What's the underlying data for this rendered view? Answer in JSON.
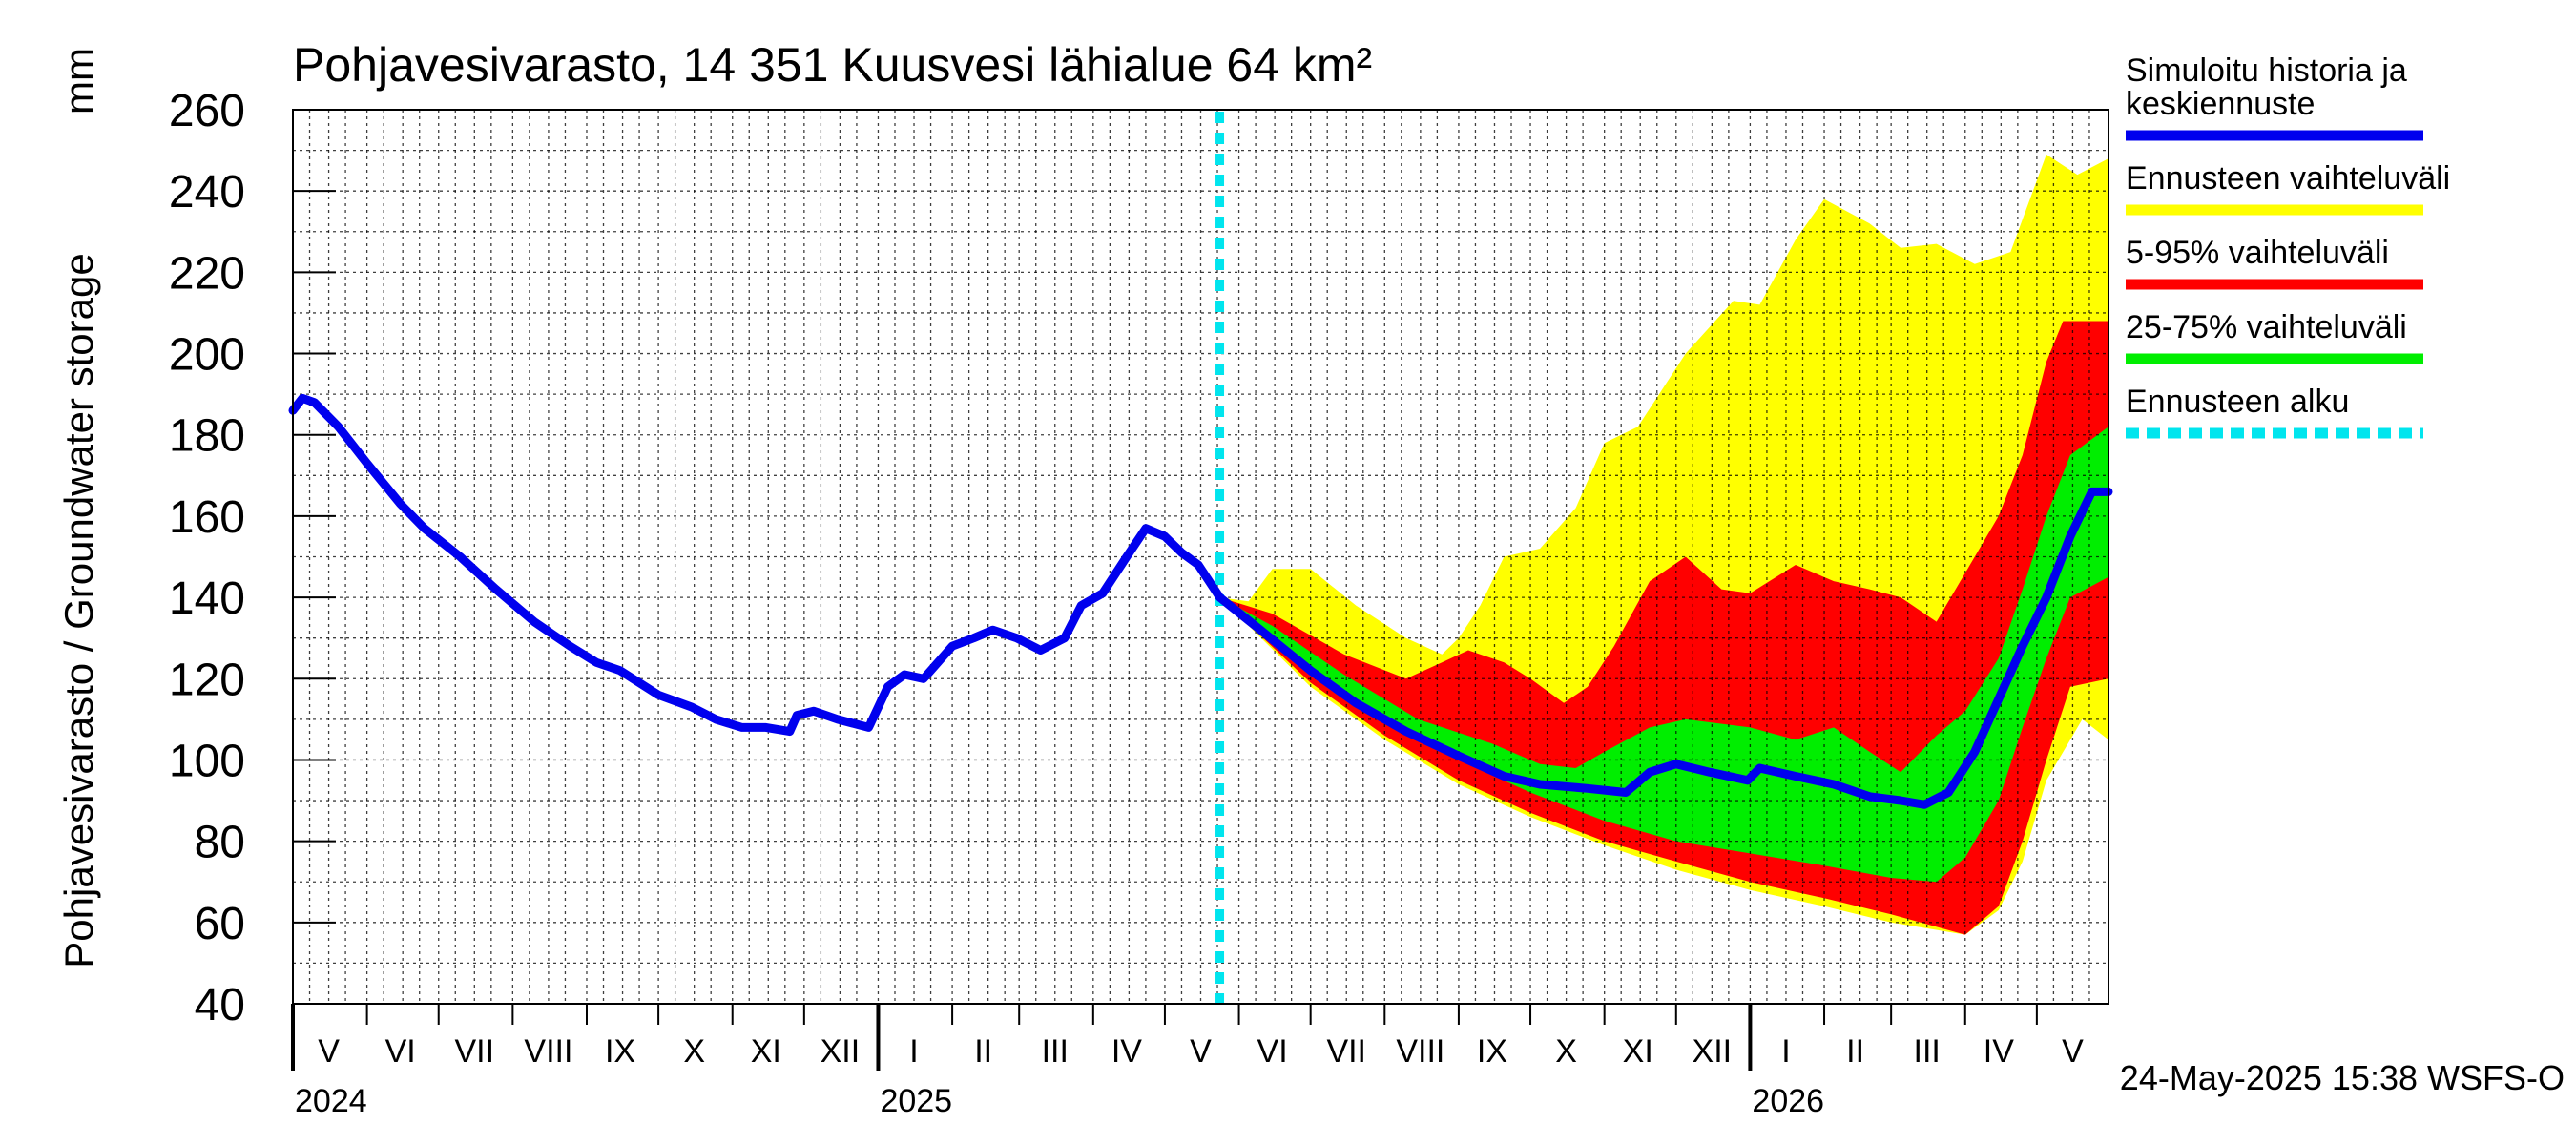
{
  "chart_data": {
    "type": "area",
    "title": "Pohjavesivarasto, 14 351 Kuusvesi lähialue 64 km²",
    "ylabel": "Pohjavesivarasto / Groundwater storage",
    "yunit": "mm",
    "ylim": [
      40,
      260
    ],
    "yticks": [
      "40",
      "60",
      "80",
      "100",
      "120",
      "140",
      "160",
      "180",
      "200",
      "220",
      "240",
      "260"
    ],
    "x_range": [
      "2024-05-01",
      "2026-05-31"
    ],
    "month_labels": [
      {
        "label": "V",
        "date": "2024-05-16"
      },
      {
        "label": "VI",
        "date": "2024-06-15"
      },
      {
        "label": "VII",
        "date": "2024-07-16"
      },
      {
        "label": "VIII",
        "date": "2024-08-16"
      },
      {
        "label": "IX",
        "date": "2024-09-15"
      },
      {
        "label": "X",
        "date": "2024-10-16"
      },
      {
        "label": "XI",
        "date": "2024-11-15"
      },
      {
        "label": "XII",
        "date": "2024-12-16"
      },
      {
        "label": "I",
        "date": "2025-01-16"
      },
      {
        "label": "II",
        "date": "2025-02-14"
      },
      {
        "label": "III",
        "date": "2025-03-16"
      },
      {
        "label": "IV",
        "date": "2025-04-15"
      },
      {
        "label": "V",
        "date": "2025-05-16"
      },
      {
        "label": "VI",
        "date": "2025-06-15"
      },
      {
        "label": "VII",
        "date": "2025-07-16"
      },
      {
        "label": "VIII",
        "date": "2025-08-16"
      },
      {
        "label": "IX",
        "date": "2025-09-15"
      },
      {
        "label": "X",
        "date": "2025-10-16"
      },
      {
        "label": "XI",
        "date": "2025-11-15"
      },
      {
        "label": "XII",
        "date": "2025-12-16"
      },
      {
        "label": "I",
        "date": "2026-01-16"
      },
      {
        "label": "II",
        "date": "2026-02-14"
      },
      {
        "label": "III",
        "date": "2026-03-16"
      },
      {
        "label": "IV",
        "date": "2026-04-15"
      },
      {
        "label": "V",
        "date": "2026-05-16"
      }
    ],
    "year_labels": [
      {
        "label": "2024",
        "date": "2024-05-01"
      },
      {
        "label": "2025",
        "date": "2025-01-01"
      },
      {
        "label": "2026",
        "date": "2026-01-01"
      }
    ],
    "forecast_start": "2025-05-24",
    "series": [
      {
        "name": "Simuloitu historia ja keskiennuste",
        "color": "#0000ee",
        "kind": "line",
        "points": [
          [
            "2024-05-01",
            186
          ],
          [
            "2024-05-05",
            189
          ],
          [
            "2024-05-10",
            188
          ],
          [
            "2024-05-20",
            182
          ],
          [
            "2024-06-01",
            173
          ],
          [
            "2024-06-15",
            163
          ],
          [
            "2024-06-25",
            157
          ],
          [
            "2024-07-10",
            150
          ],
          [
            "2024-07-25",
            142
          ],
          [
            "2024-08-10",
            134
          ],
          [
            "2024-08-25",
            128
          ],
          [
            "2024-09-05",
            124
          ],
          [
            "2024-09-15",
            122
          ],
          [
            "2024-10-01",
            116
          ],
          [
            "2024-10-15",
            113
          ],
          [
            "2024-10-25",
            110
          ],
          [
            "2024-11-05",
            108
          ],
          [
            "2024-11-15",
            108
          ],
          [
            "2024-11-25",
            107
          ],
          [
            "2024-11-28",
            111
          ],
          [
            "2024-12-05",
            112
          ],
          [
            "2024-12-15",
            110
          ],
          [
            "2024-12-28",
            108
          ],
          [
            "2025-01-05",
            118
          ],
          [
            "2025-01-12",
            121
          ],
          [
            "2025-01-20",
            120
          ],
          [
            "2025-02-01",
            128
          ],
          [
            "2025-02-10",
            130
          ],
          [
            "2025-02-18",
            132
          ],
          [
            "2025-02-28",
            130
          ],
          [
            "2025-03-10",
            127
          ],
          [
            "2025-03-20",
            130
          ],
          [
            "2025-03-27",
            138
          ],
          [
            "2025-04-05",
            141
          ],
          [
            "2025-04-15",
            150
          ],
          [
            "2025-04-23",
            157
          ],
          [
            "2025-05-01",
            155
          ],
          [
            "2025-05-08",
            151
          ],
          [
            "2025-05-15",
            148
          ],
          [
            "2025-05-24",
            140
          ],
          [
            "2025-06-10",
            132
          ],
          [
            "2025-07-01",
            122
          ],
          [
            "2025-07-20",
            114
          ],
          [
            "2025-08-10",
            107
          ],
          [
            "2025-09-01",
            101
          ],
          [
            "2025-09-20",
            96
          ],
          [
            "2025-10-05",
            94
          ],
          [
            "2025-10-25",
            93
          ],
          [
            "2025-11-10",
            92
          ],
          [
            "2025-11-20",
            97
          ],
          [
            "2025-12-01",
            99
          ],
          [
            "2025-12-15",
            97
          ],
          [
            "2025-12-31",
            95
          ],
          [
            "2026-01-05",
            98
          ],
          [
            "2026-01-20",
            96
          ],
          [
            "2026-02-05",
            94
          ],
          [
            "2026-02-20",
            91
          ],
          [
            "2026-03-05",
            90
          ],
          [
            "2026-03-15",
            89
          ],
          [
            "2026-03-25",
            92
          ],
          [
            "2026-04-05",
            102
          ],
          [
            "2026-04-15",
            115
          ],
          [
            "2026-04-25",
            128
          ],
          [
            "2026-05-05",
            140
          ],
          [
            "2026-05-15",
            155
          ],
          [
            "2026-05-24",
            166
          ],
          [
            "2026-05-31",
            166
          ]
        ]
      },
      {
        "name": "Ennusteen vaihteluväli",
        "color": "#ffff00",
        "kind": "band",
        "upper": [
          [
            "2025-05-24",
            140
          ],
          [
            "2025-06-05",
            139
          ],
          [
            "2025-06-15",
            147
          ],
          [
            "2025-07-01",
            147
          ],
          [
            "2025-07-20",
            138
          ],
          [
            "2025-08-10",
            130
          ],
          [
            "2025-08-25",
            126
          ],
          [
            "2025-09-01",
            130
          ],
          [
            "2025-09-10",
            138
          ],
          [
            "2025-09-20",
            150
          ],
          [
            "2025-10-05",
            152
          ],
          [
            "2025-10-20",
            162
          ],
          [
            "2025-11-01",
            178
          ],
          [
            "2025-11-15",
            182
          ],
          [
            "2025-12-05",
            200
          ],
          [
            "2025-12-25",
            213
          ],
          [
            "2026-01-05",
            212
          ],
          [
            "2026-01-20",
            228
          ],
          [
            "2026-02-01",
            238
          ],
          [
            "2026-02-20",
            232
          ],
          [
            "2026-03-05",
            226
          ],
          [
            "2026-03-20",
            227
          ],
          [
            "2026-04-05",
            222
          ],
          [
            "2026-04-20",
            225
          ],
          [
            "2026-05-05",
            249
          ],
          [
            "2026-05-18",
            244
          ],
          [
            "2026-05-31",
            248
          ]
        ],
        "lower": [
          [
            "2025-05-24",
            140
          ],
          [
            "2025-07-01",
            118
          ],
          [
            "2025-08-01",
            105
          ],
          [
            "2025-09-01",
            94
          ],
          [
            "2025-10-01",
            86
          ],
          [
            "2025-11-01",
            79
          ],
          [
            "2025-12-01",
            73
          ],
          [
            "2026-01-01",
            68
          ],
          [
            "2026-02-01",
            64
          ],
          [
            "2026-03-01",
            60
          ],
          [
            "2026-04-01",
            57
          ],
          [
            "2026-04-15",
            63
          ],
          [
            "2026-04-25",
            75
          ],
          [
            "2026-05-05",
            95
          ],
          [
            "2026-05-20",
            110
          ],
          [
            "2026-05-31",
            105
          ]
        ]
      },
      {
        "name": "5-95% vaihteluväli",
        "color": "#ff0000",
        "kind": "band",
        "upper": [
          [
            "2025-05-24",
            140
          ],
          [
            "2025-06-15",
            136
          ],
          [
            "2025-07-15",
            126
          ],
          [
            "2025-08-10",
            120
          ],
          [
            "2025-08-25",
            124
          ],
          [
            "2025-09-05",
            127
          ],
          [
            "2025-09-20",
            124
          ],
          [
            "2025-10-01",
            120
          ],
          [
            "2025-10-15",
            114
          ],
          [
            "2025-10-25",
            118
          ],
          [
            "2025-11-05",
            128
          ],
          [
            "2025-11-20",
            144
          ],
          [
            "2025-12-05",
            150
          ],
          [
            "2025-12-20",
            142
          ],
          [
            "2026-01-01",
            141
          ],
          [
            "2026-01-20",
            148
          ],
          [
            "2026-02-05",
            144
          ],
          [
            "2026-02-20",
            142
          ],
          [
            "2026-03-05",
            140
          ],
          [
            "2026-03-20",
            134
          ],
          [
            "2026-04-05",
            150
          ],
          [
            "2026-04-15",
            160
          ],
          [
            "2026-04-25",
            175
          ],
          [
            "2026-05-05",
            198
          ],
          [
            "2026-05-12",
            208
          ],
          [
            "2026-05-31",
            208
          ]
        ],
        "lower": [
          [
            "2025-05-24",
            140
          ],
          [
            "2025-07-01",
            119
          ],
          [
            "2025-08-01",
            106
          ],
          [
            "2025-09-01",
            95
          ],
          [
            "2025-10-01",
            87
          ],
          [
            "2025-11-01",
            80
          ],
          [
            "2025-12-01",
            75
          ],
          [
            "2026-01-01",
            70
          ],
          [
            "2026-02-01",
            66
          ],
          [
            "2026-03-01",
            62
          ],
          [
            "2026-04-01",
            57
          ],
          [
            "2026-04-15",
            64
          ],
          [
            "2026-04-25",
            80
          ],
          [
            "2026-05-05",
            100
          ],
          [
            "2026-05-15",
            118
          ],
          [
            "2026-05-31",
            120
          ]
        ]
      },
      {
        "name": "25-75% vaihteluväli",
        "color": "#00ee00",
        "kind": "band",
        "upper": [
          [
            "2025-05-24",
            140
          ],
          [
            "2025-06-15",
            133
          ],
          [
            "2025-07-15",
            121
          ],
          [
            "2025-08-15",
            110
          ],
          [
            "2025-09-15",
            104
          ],
          [
            "2025-10-05",
            99
          ],
          [
            "2025-10-20",
            98
          ],
          [
            "2025-11-01",
            102
          ],
          [
            "2025-11-20",
            108
          ],
          [
            "2025-12-05",
            110
          ],
          [
            "2026-01-01",
            108
          ],
          [
            "2026-01-20",
            105
          ],
          [
            "2026-02-05",
            108
          ],
          [
            "2026-02-20",
            102
          ],
          [
            "2026-03-05",
            97
          ],
          [
            "2026-03-20",
            106
          ],
          [
            "2026-04-01",
            112
          ],
          [
            "2026-04-15",
            125
          ],
          [
            "2026-04-25",
            142
          ],
          [
            "2026-05-05",
            160
          ],
          [
            "2026-05-15",
            175
          ],
          [
            "2026-05-31",
            182
          ]
        ],
        "lower": [
          [
            "2025-05-24",
            140
          ],
          [
            "2025-07-01",
            121
          ],
          [
            "2025-08-01",
            110
          ],
          [
            "2025-09-01",
            100
          ],
          [
            "2025-10-01",
            92
          ],
          [
            "2025-11-01",
            85
          ],
          [
            "2025-12-01",
            80
          ],
          [
            "2026-01-01",
            77
          ],
          [
            "2026-02-01",
            74
          ],
          [
            "2026-03-01",
            71
          ],
          [
            "2026-03-20",
            70
          ],
          [
            "2026-04-01",
            76
          ],
          [
            "2026-04-15",
            90
          ],
          [
            "2026-04-25",
            108
          ],
          [
            "2026-05-05",
            125
          ],
          [
            "2026-05-15",
            140
          ],
          [
            "2026-05-31",
            145
          ]
        ]
      }
    ],
    "legend": [
      {
        "label": "Simuloitu historia ja keskiennuste",
        "color": "#0000ee",
        "style": "solid"
      },
      {
        "label": "Ennusteen vaihteluväli",
        "color": "#ffff00",
        "style": "solid"
      },
      {
        "label": "5-95% vaihteluväli",
        "color": "#ff0000",
        "style": "solid"
      },
      {
        "label": "25-75% vaihteluväli",
        "color": "#00ee00",
        "style": "solid"
      },
      {
        "label": "Ennusteen alku",
        "color": "#00e5ee",
        "style": "dashed"
      }
    ],
    "forecast_line_color": "#00e5ee",
    "timestamp": "24-May-2025 15:38 WSFS-O"
  }
}
